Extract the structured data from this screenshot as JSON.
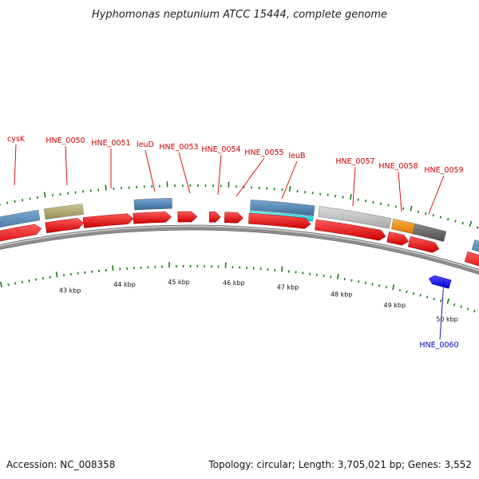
{
  "title": "Hyphomonas neptunium ATCC 15444, complete genome",
  "footer": {
    "accession": "Accession: NC_008358",
    "topology": "Topology: circular; Length: 3,705,021 bp; Genes: 3,552"
  },
  "colors": {
    "red_gene": "#ee1111",
    "blue_gene": "#1a1aee",
    "steel": "#4a7fb0",
    "olive": "#b3ad72",
    "cyan": "#22e4f0",
    "lightgray": "#c0c0c0",
    "darkgray": "#6a6a6a",
    "orange": "#f0900f",
    "tick": "#1a7a1a",
    "backbone": "#888888",
    "label_red": "#cc0000",
    "label_blue": "#0000bb"
  },
  "kbp_labels": [
    "43 kbp",
    "44 kbp",
    "45 kbp",
    "46 kbp",
    "47 kbp",
    "48 kbp",
    "49 kbp",
    "50 kbp"
  ],
  "gene_labels": [
    {
      "name": "cysK",
      "strand": "forward"
    },
    {
      "name": "HNE_0050",
      "strand": "forward"
    },
    {
      "name": "HNE_0051",
      "strand": "forward"
    },
    {
      "name": "leuD",
      "strand": "forward"
    },
    {
      "name": "HNE_0053",
      "strand": "forward"
    },
    {
      "name": "HNE_0054",
      "strand": "forward"
    },
    {
      "name": "HNE_0055",
      "strand": "forward"
    },
    {
      "name": "leuB",
      "strand": "forward"
    },
    {
      "name": "HNE_0057",
      "strand": "forward"
    },
    {
      "name": "HNE_0058",
      "strand": "forward"
    },
    {
      "name": "HNE_0059",
      "strand": "forward"
    },
    {
      "name": "HNE_0060",
      "strand": "reverse"
    }
  ]
}
